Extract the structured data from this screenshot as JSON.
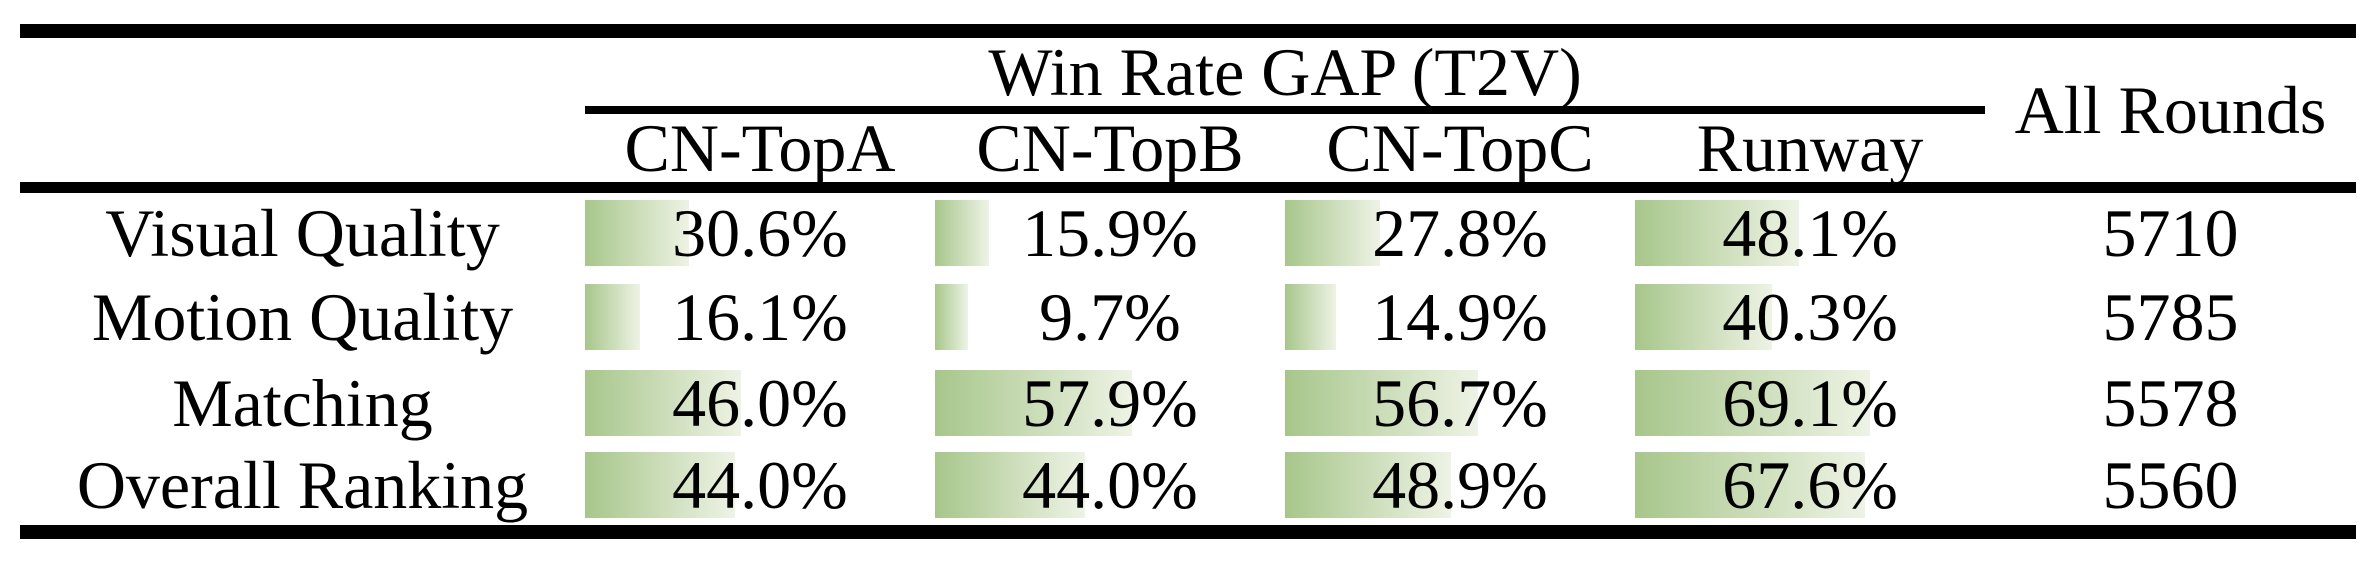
{
  "table": {
    "group_header": "Win Rate GAP (T2V)",
    "column_headers": [
      "CN-TopA",
      "CN-TopB",
      "CN-TopC",
      "Runway"
    ],
    "rounds_header": "All Rounds",
    "rows": [
      {
        "label": "Visual Quality",
        "cells": [
          {
            "text": "30.6%",
            "pct": 30.6
          },
          {
            "text": "15.9%",
            "pct": 15.9
          },
          {
            "text": "27.8%",
            "pct": 27.8
          },
          {
            "text": "48.1%",
            "pct": 48.1
          }
        ],
        "rounds": "5710"
      },
      {
        "label": "Motion Quality",
        "cells": [
          {
            "text": "16.1%",
            "pct": 16.1
          },
          {
            "text": "9.7%",
            "pct": 9.7
          },
          {
            "text": "14.9%",
            "pct": 14.9
          },
          {
            "text": "40.3%",
            "pct": 40.3
          }
        ],
        "rounds": "5785"
      },
      {
        "label": "Matching",
        "cells": [
          {
            "text": "46.0%",
            "pct": 46.0
          },
          {
            "text": "57.9%",
            "pct": 57.9
          },
          {
            "text": "56.7%",
            "pct": 56.7
          },
          {
            "text": "69.1%",
            "pct": 69.1
          }
        ],
        "rounds": "5578"
      },
      {
        "label": "Overall Ranking",
        "cells": [
          {
            "text": "44.0%",
            "pct": 44.0
          },
          {
            "text": "44.0%",
            "pct": 44.0
          },
          {
            "text": "48.9%",
            "pct": 48.9
          },
          {
            "text": "67.6%",
            "pct": 67.6
          }
        ],
        "rounds": "5560"
      }
    ],
    "colors": {
      "bar_gradient_start": "#a7c68b",
      "bar_gradient_end": "#eef3e5",
      "rule_color": "#000000"
    }
  },
  "chart_data": {
    "type": "table",
    "title": "Win Rate GAP (T2V)",
    "columns": [
      "CN-TopA",
      "CN-TopB",
      "CN-TopC",
      "Runway",
      "All Rounds"
    ],
    "rows": [
      "Visual Quality",
      "Motion Quality",
      "Matching",
      "Overall Ranking"
    ],
    "win_rate_gap_percent": {
      "Visual Quality": [
        30.6,
        15.9,
        27.8,
        48.1
      ],
      "Motion Quality": [
        16.1,
        9.7,
        14.9,
        40.3
      ],
      "Matching": [
        46.0,
        57.9,
        56.7,
        69.1
      ],
      "Overall Ranking": [
        44.0,
        44.0,
        48.9,
        67.6
      ]
    },
    "all_rounds": {
      "Visual Quality": 5710,
      "Motion Quality": 5785,
      "Matching": 5578,
      "Overall Ranking": 5560
    },
    "layout_hints": {
      "bar_style": "green gradient data bars, width proportional to percent of cell",
      "rules": "booktabs: thick top/bottom, mid rule under group header, full rule under column headers"
    }
  }
}
